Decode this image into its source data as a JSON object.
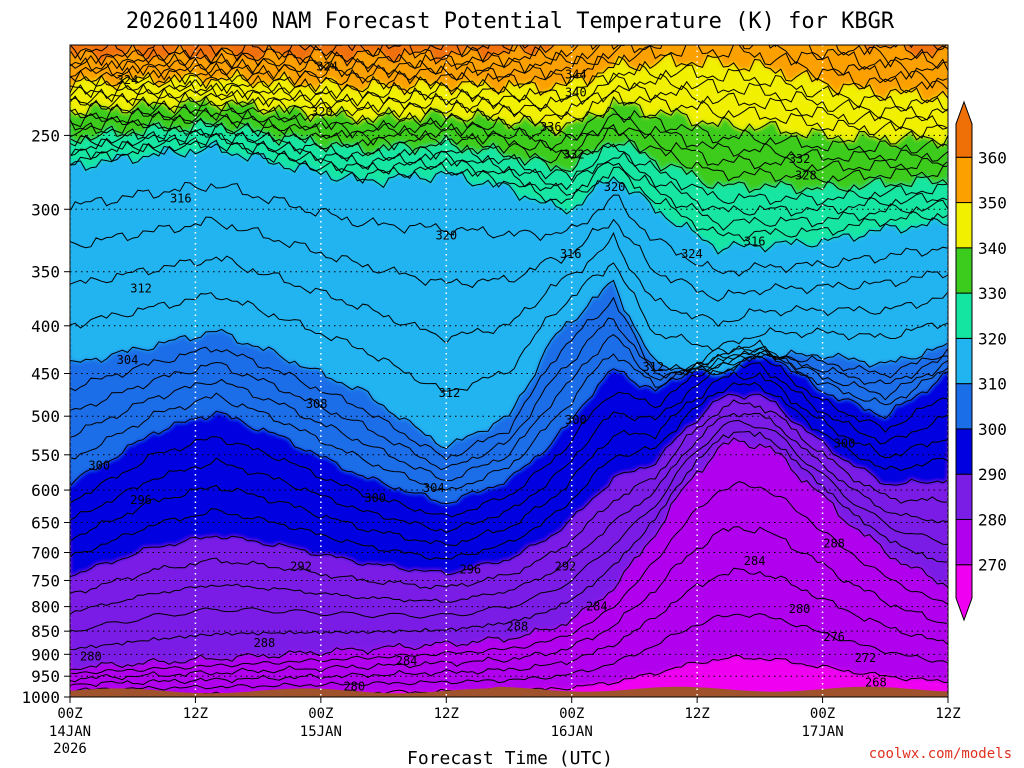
{
  "chart_data": {
    "type": "contour",
    "title": "2026011400 NAM Forecast Potential Temperature (K) for KBGR",
    "xlabel": "Forecast Time (UTC)",
    "ylabel": "",
    "x_range_hours": [
      0,
      84
    ],
    "y_range_hpa": [
      1000,
      200
    ],
    "y_scale": "log",
    "y_ticks": [
      "250",
      "300",
      "350",
      "400",
      "450",
      "500",
      "550",
      "600",
      "650",
      "700",
      "750",
      "800",
      "850",
      "900",
      "950",
      "1000"
    ],
    "x_ticks": [
      {
        "hour": 0,
        "time": "00Z",
        "date": "14JAN",
        "year": "2026"
      },
      {
        "hour": 12,
        "time": "12Z",
        "date": "",
        "year": ""
      },
      {
        "hour": 24,
        "time": "00Z",
        "date": "15JAN",
        "year": ""
      },
      {
        "hour": 36,
        "time": "12Z",
        "date": "",
        "year": ""
      },
      {
        "hour": 48,
        "time": "00Z",
        "date": "16JAN",
        "year": ""
      },
      {
        "hour": 60,
        "time": "12Z",
        "date": "",
        "year": ""
      },
      {
        "hour": 72,
        "time": "00Z",
        "date": "17JAN",
        "year": ""
      },
      {
        "hour": 84,
        "time": "12Z",
        "date": "",
        "year": ""
      }
    ],
    "grid": "dotted",
    "colorbar": {
      "placement": "right",
      "levels": [
        270,
        280,
        290,
        300,
        310,
        320,
        330,
        340,
        350,
        360
      ],
      "labels": [
        "270",
        "280",
        "290",
        "300",
        "310",
        "320",
        "330",
        "340",
        "350",
        "360"
      ],
      "colors": [
        "#f000f0",
        "#b000ee",
        "#7a1ee6",
        "#0000e0",
        "#1a6ee8",
        "#22b4f0",
        "#14e6a2",
        "#3ccc1e",
        "#f0f000",
        "#fca000",
        "#f07008"
      ]
    },
    "terrain_color": "#a0522d",
    "contour_interval_k": 2,
    "contour_labels": [
      {
        "label": "324",
        "h": 5.5,
        "p": 218
      },
      {
        "label": "324",
        "h": 24.6,
        "p": 211
      },
      {
        "label": "320",
        "h": 24.1,
        "p": 236
      },
      {
        "label": "344",
        "h": 48.4,
        "p": 215
      },
      {
        "label": "340",
        "h": 48.4,
        "p": 225
      },
      {
        "label": "336",
        "h": 46,
        "p": 245
      },
      {
        "label": "332",
        "h": 48.2,
        "p": 262
      },
      {
        "label": "332",
        "h": 69.8,
        "p": 265
      },
      {
        "label": "328",
        "h": 70.4,
        "p": 276
      },
      {
        "label": "316",
        "h": 10.6,
        "p": 292
      },
      {
        "label": "320",
        "h": 52.1,
        "p": 284
      },
      {
        "label": "320",
        "h": 36,
        "p": 320
      },
      {
        "label": "316",
        "h": 47.9,
        "p": 335
      },
      {
        "label": "324",
        "h": 59.5,
        "p": 335
      },
      {
        "label": "316",
        "h": 65.5,
        "p": 325
      },
      {
        "label": "312",
        "h": 6.8,
        "p": 365
      },
      {
        "label": "304",
        "h": 5.5,
        "p": 435
      },
      {
        "label": "312",
        "h": 55.8,
        "p": 443
      },
      {
        "label": "308",
        "h": 23.6,
        "p": 485
      },
      {
        "label": "312",
        "h": 36.3,
        "p": 472
      },
      {
        "label": "300",
        "h": 48.4,
        "p": 505
      },
      {
        "label": "300",
        "h": 74.1,
        "p": 535
      },
      {
        "label": "300",
        "h": 2.8,
        "p": 565
      },
      {
        "label": "296",
        "h": 6.8,
        "p": 615
      },
      {
        "label": "304",
        "h": 34.8,
        "p": 597
      },
      {
        "label": "300",
        "h": 29.2,
        "p": 612
      },
      {
        "label": "292",
        "h": 22.1,
        "p": 725
      },
      {
        "label": "296",
        "h": 38.3,
        "p": 730
      },
      {
        "label": "292",
        "h": 47.4,
        "p": 725
      },
      {
        "label": "288",
        "h": 73.1,
        "p": 685
      },
      {
        "label": "284",
        "h": 65.5,
        "p": 715
      },
      {
        "label": "284",
        "h": 50.4,
        "p": 800
      },
      {
        "label": "288",
        "h": 42.8,
        "p": 840
      },
      {
        "label": "288",
        "h": 18.6,
        "p": 875
      },
      {
        "label": "280",
        "h": 69.8,
        "p": 805
      },
      {
        "label": "276",
        "h": 73.1,
        "p": 862
      },
      {
        "label": "284",
        "h": 32.2,
        "p": 915
      },
      {
        "label": "280",
        "h": 2.0,
        "p": 905
      },
      {
        "label": "272",
        "h": 76.1,
        "p": 908
      },
      {
        "label": "280",
        "h": 27.2,
        "p": 975
      },
      {
        "label": "268",
        "h": 77.1,
        "p": 965
      }
    ],
    "credit": "coolwx.com/models"
  }
}
